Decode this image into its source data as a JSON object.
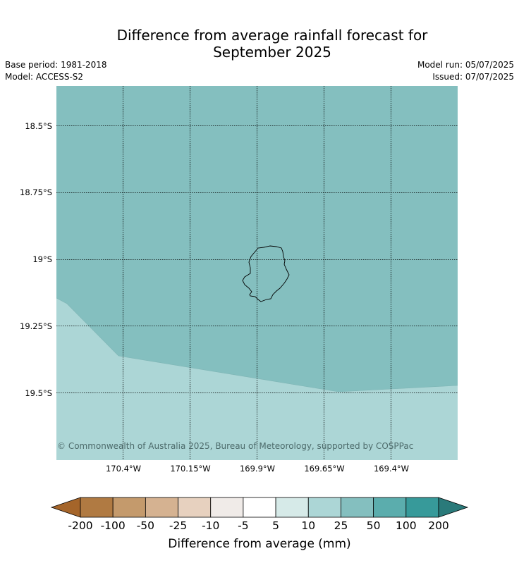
{
  "title_line1": "Difference from average rainfall forecast for",
  "title_line2": "September 2025",
  "base_period": "Base period: 1981-2018",
  "model": "Model: ACCESS-S2",
  "model_run": "Model run: 05/07/2025",
  "issued": "Issued: 07/07/2025",
  "copyright": "© Commonwealth of Australia 2025, Bureau of Meteorology, supported by COSPPac",
  "map": {
    "lat_labels": [
      "18.5°S",
      "18.75°S",
      "19°S",
      "19.25°S",
      "19.5°S"
    ],
    "lon_labels": [
      "170.4°W",
      "170.15°W",
      "169.9°W",
      "169.65°W",
      "169.4°W"
    ]
  },
  "colorbar": {
    "label": "Difference from average (mm)",
    "ticks": [
      "-200",
      "-100",
      "-50",
      "-25",
      "-10",
      "-5",
      "5",
      "10",
      "25",
      "50",
      "100",
      "200"
    ],
    "colors": [
      "#a5652a",
      "#b07a42",
      "#c49a6c",
      "#d5b291",
      "#e7d1bf",
      "#f0ebe8",
      "#ffffff",
      "#d6eae8",
      "#acd6d6",
      "#84bfbf",
      "#5badad",
      "#379a9a",
      "#2a7a7a"
    ],
    "extend": "both"
  },
  "legend_colors": {
    "zone_upper": "#84bfbf",
    "zone_lower": "#acd6d6"
  }
}
